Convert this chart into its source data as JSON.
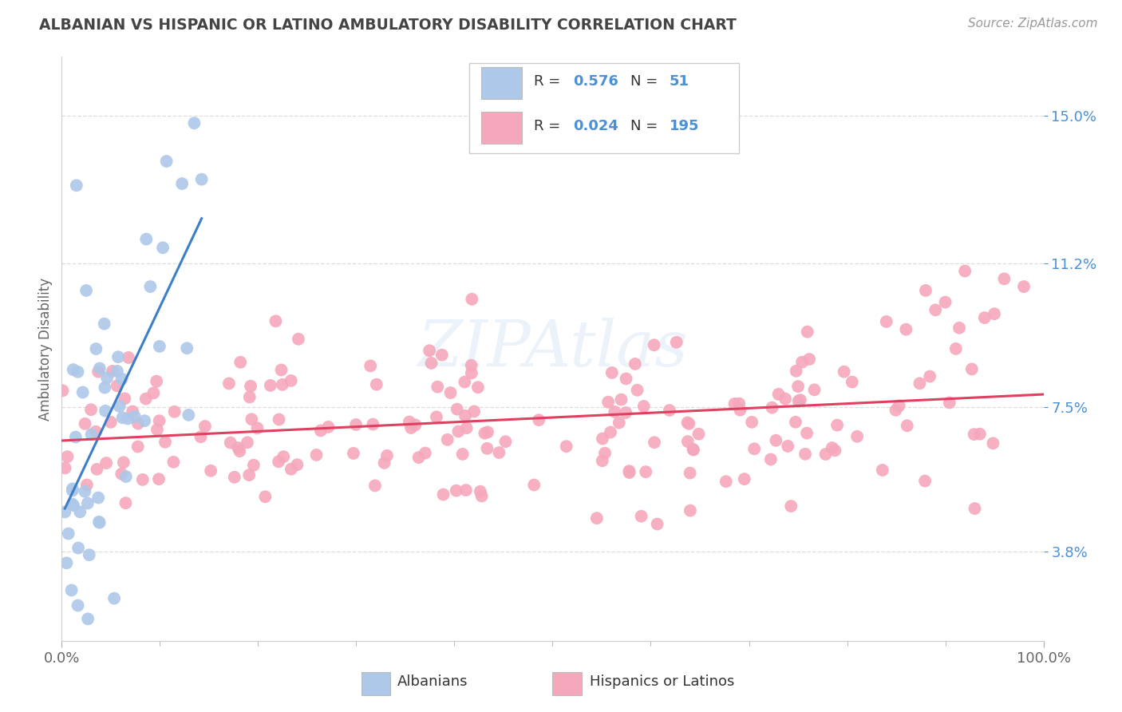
{
  "title": "ALBANIAN VS HISPANIC OR LATINO AMBULATORY DISABILITY CORRELATION CHART",
  "source": "Source: ZipAtlas.com",
  "ylabel": "Ambulatory Disability",
  "yticks": [
    3.8,
    7.5,
    11.2,
    15.0
  ],
  "xlim": [
    0.0,
    100.0
  ],
  "ylim": [
    1.5,
    16.5
  ],
  "albanian_R": "0.576",
  "albanian_N": "51",
  "hispanic_R": "0.024",
  "hispanic_N": "195",
  "legend_albanians": "Albanians",
  "legend_hispanics": "Hispanics or Latinos",
  "color_albanian": "#adc8e8",
  "color_hispanic": "#f5a8bb",
  "line_albanian": "#3c7ec8",
  "line_hispanic": "#e04060",
  "watermark": "ZIPAtlas",
  "bg_color": "#ffffff",
  "grid_color": "#dddddd",
  "title_color": "#444444",
  "source_color": "#999999",
  "ylabel_color": "#666666",
  "ytick_color": "#4a90d9",
  "xtick_color": "#666666"
}
